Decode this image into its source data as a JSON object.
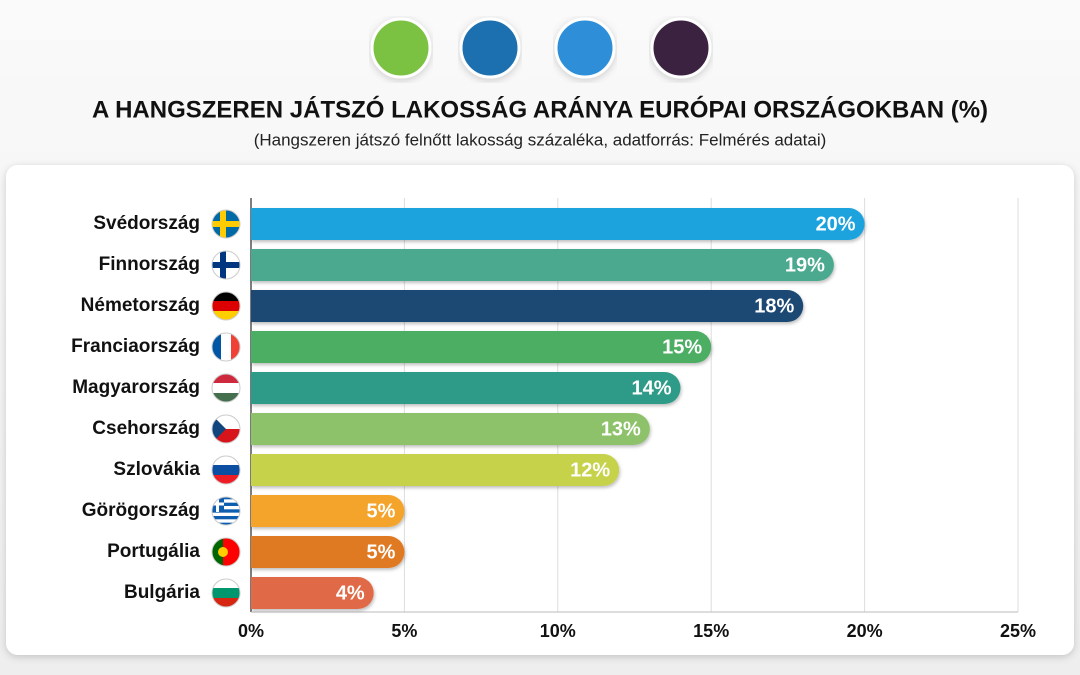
{
  "chart_data": {
    "type": "hbar",
    "title": "A HANGSZEREN JÁTSZÓ LAKOSSÁG ARÁNYA EURÓPAI ORSZÁGOKBAN (%)",
    "subtitle": "(Hangszeren játszó felnőtt lakosság százaléka, adatforrás: Felmérés adatai)",
    "categories": [
      "Svédország",
      "Finnország",
      "Németország",
      "Franciaország",
      "Magyarország",
      "Csehország",
      "Szlovákia",
      "Görögország",
      "Portugália",
      "Bulgária"
    ],
    "values": [
      20,
      19,
      18,
      15,
      14,
      13,
      12,
      5,
      5,
      4
    ],
    "value_labels": [
      "20%",
      "19%",
      "18%",
      "15%",
      "14%",
      "13%",
      "12%",
      "5%",
      "5%",
      "4%"
    ],
    "colors": [
      "#1ba3de",
      "#4ba98f",
      "#1c4a73",
      "#4cae62",
      "#2f9b88",
      "#8dc26a",
      "#c6d24a",
      "#f4a42b",
      "#e07a20",
      "#e06b46"
    ],
    "xlim": [
      0,
      25
    ],
    "xticks": [
      {
        "value": 0,
        "label": "0%"
      },
      {
        "value": 5,
        "label": "5%"
      },
      {
        "value": 10,
        "label": "10%"
      },
      {
        "value": 15,
        "label": "15%"
      },
      {
        "value": 20,
        "label": "20%"
      },
      {
        "value": 25,
        "label": "25%"
      }
    ],
    "grid": true
  }
}
